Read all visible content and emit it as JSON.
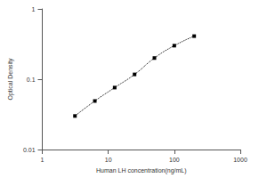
{
  "chart_data": {
    "type": "line",
    "x_label": "Human LH concentration(ng/mL)",
    "y_label": "Optical Density",
    "x": [
      3.125,
      6.25,
      12.5,
      25,
      50,
      100,
      200
    ],
    "values": [
      0.03,
      0.049,
      0.076,
      0.117,
      0.2,
      0.3,
      0.41
    ],
    "color": "#000000",
    "marker": "square",
    "line_style": "dotted",
    "log": true,
    "grid": false,
    "xlim": [
      1,
      1000
    ],
    "xticks": [
      1,
      10,
      100,
      1000
    ],
    "ylim": [
      0.01,
      1
    ],
    "yticks": [
      0.01,
      0.1,
      1
    ]
  }
}
